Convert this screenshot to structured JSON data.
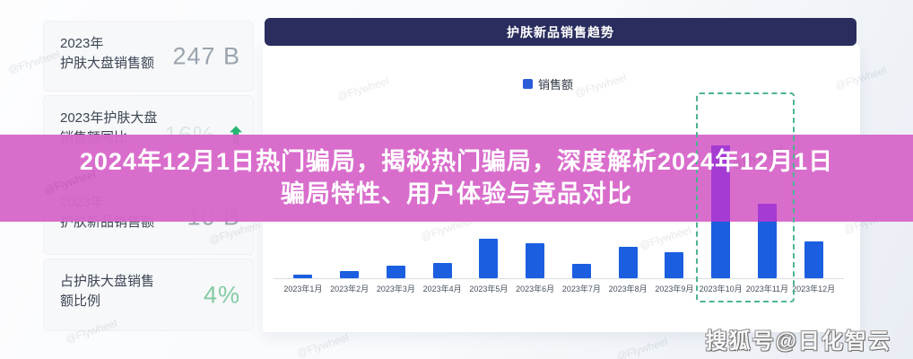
{
  "overlay": {
    "title_line1": "2024年12月1日热门骗局，揭秘热门骗局，深度解析2024年12月1日",
    "title_line2": "骗局特性、用户体验与竞品对比",
    "band_color": "#d767ca",
    "text_color": "#ffffff"
  },
  "sidebar": {
    "cards": [
      {
        "line1": "2023年",
        "line2": "护肤大盘销售额",
        "value": "247 B",
        "value_color": "#9aa4ae"
      },
      {
        "line1": "2023年护肤大盘",
        "line2": "销售额同比",
        "value": "16%",
        "value_color": "#dce8e2",
        "arrow_up": true,
        "arrow_color": "#28b473"
      },
      {
        "line1": "2023年",
        "line2": "护肤新品销售额",
        "value": "10 B",
        "value_color": "#9aa4ae"
      },
      {
        "line1": "占护肤大盘销售",
        "line2": "额比例",
        "value": "4%",
        "value_color": "#85cba3"
      }
    ]
  },
  "chart": {
    "header": "护肤新品销售趋势",
    "header_bg": "#2a2d5e",
    "legend_label": "销售额",
    "legend_swatch_color": "#2b5cd9"
  },
  "chart_data": {
    "type": "bar",
    "title": "护肤新品销售趋势",
    "legend": [
      "销售额"
    ],
    "legend_position": "top-center",
    "categories": [
      "2023年1月",
      "2023年2月",
      "2023年3月",
      "2023年4月",
      "2023年5月",
      "2023年6月",
      "2023年7月",
      "2023年8月",
      "2023年9月",
      "2023年10月",
      "2023年11月",
      "2023年12月"
    ],
    "values": [
      2.7,
      5.4,
      9.5,
      11.5,
      29.7,
      26.4,
      10.8,
      23.6,
      19.6,
      100,
      56,
      28
    ],
    "value_note": "relative bar height, max month (2023年10月) = 100; no y-axis tick labels shown",
    "bar_color": "#1b5fe0",
    "grid": false,
    "y_axis_visible": false,
    "highlight_box": {
      "categories": [
        "2023年10月",
        "2023年11月"
      ],
      "style": "green dashed rectangle",
      "color": "#4db392"
    }
  },
  "watermarks": {
    "sohu": "搜狐号@日化智云",
    "flywheel": "@Flywheel"
  }
}
